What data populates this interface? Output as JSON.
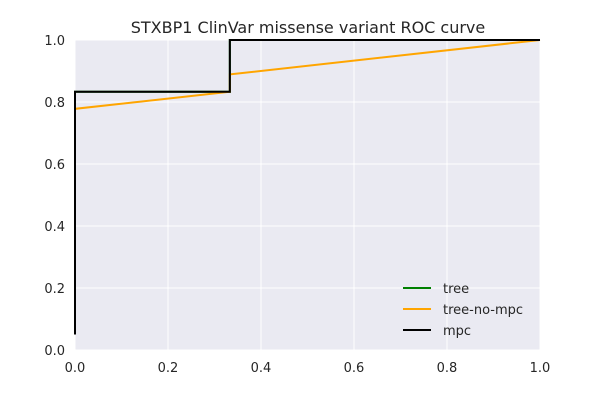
{
  "chart_data": {
    "type": "line",
    "title": "STXBP1 ClinVar missense variant ROC curve",
    "xlabel": "",
    "ylabel": "",
    "xlim": [
      0.0,
      1.0
    ],
    "ylim": [
      0.0,
      1.0
    ],
    "x_ticks": [
      "0.0",
      "0.2",
      "0.4",
      "0.6",
      "0.8",
      "1.0"
    ],
    "y_ticks": [
      "0.0",
      "0.2",
      "0.4",
      "0.6",
      "0.8",
      "1.0"
    ],
    "grid": true,
    "legend_position": "lower-right",
    "background_color": "#eaeaf2",
    "series": [
      {
        "name": "tree",
        "color": "#008000",
        "points": [
          [
            0.0,
            0.05
          ],
          [
            0.0,
            0.833
          ],
          [
            0.333,
            0.833
          ],
          [
            0.333,
            1.0
          ],
          [
            1.0,
            1.0
          ]
        ]
      },
      {
        "name": "tree-no-mpc",
        "color": "#ffa500",
        "points": [
          [
            0.0,
            0.05
          ],
          [
            0.0,
            0.778
          ],
          [
            0.333,
            0.833
          ],
          [
            0.333,
            0.889
          ],
          [
            1.0,
            1.0
          ]
        ]
      },
      {
        "name": "mpc",
        "color": "#000000",
        "points": [
          [
            0.0,
            0.05
          ],
          [
            0.0,
            0.833
          ],
          [
            0.333,
            0.833
          ],
          [
            0.333,
            1.0
          ],
          [
            1.0,
            1.0
          ]
        ]
      }
    ]
  }
}
